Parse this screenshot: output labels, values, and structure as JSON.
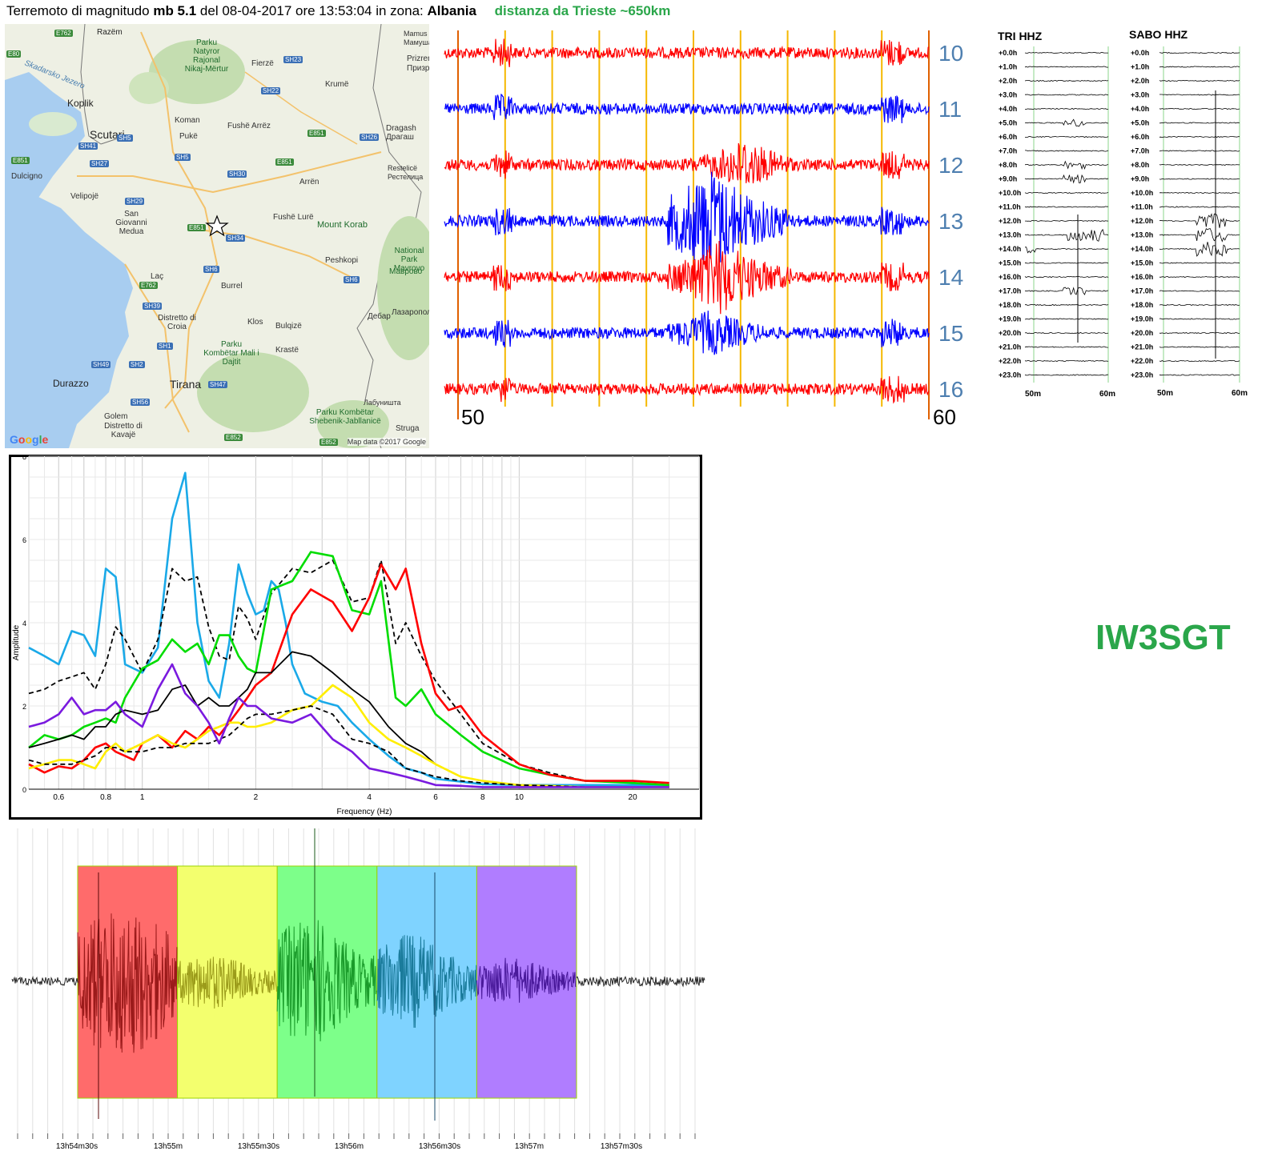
{
  "header": {
    "prefix": "Terremoto di magnitudo",
    "magnitude": "mb 5.1",
    "date_part": "del 08-04-2017 ore 13:53:04",
    "zone_part": "in zona:",
    "zone": "Albania",
    "distance": "distanza da Trieste ~650km"
  },
  "map": {
    "places": [
      "Razëm",
      "Koplik",
      "Scutari",
      "Koman",
      "Pukë",
      "Fushë Arrëz",
      "Fierzë",
      "Krumë",
      "Dragash",
      "Драгаш",
      "Restelicë",
      "Рестелица",
      "Dulcigno",
      "Velipojë",
      "San Giovanni Medua",
      "Arrën",
      "Fushë Lurë",
      "Mount Korab",
      "Peshkopi",
      "Laç",
      "Burrel",
      "Distretto di Croia",
      "Klos",
      "Bulqizë",
      "Krastë",
      "Дебар",
      "Лазаропол",
      "Durazzo",
      "Tirana",
      "Golem",
      "Distretto di Kavajë",
      "Лабуништа",
      "Struga",
      "Mamus",
      "Мамуша",
      "Prizren",
      "Призр"
    ],
    "parks": [
      "Parku Natyror Rajonal Nikaj-Mërtur",
      "National Park Mavrovo",
      "Маврово",
      "Parku Kombëtar Mali i Dajtit",
      "Parku Kombëtar Shebenik-Jabllanicë"
    ],
    "water": "Skadarsko Jezero",
    "roads": [
      "E762",
      "SH23",
      "SH22",
      "SH5",
      "SH41",
      "SH27",
      "SH5",
      "E851",
      "SH26",
      "SH30",
      "E851",
      "SH29",
      "E851",
      "SH34",
      "SH6",
      "E762",
      "SH39",
      "SH6",
      "SH1",
      "SH49",
      "SH2",
      "SH47",
      "SH56",
      "E852",
      "E852",
      "E80",
      "E851"
    ],
    "google": "Google",
    "attribution": "Map data ©2017 Google"
  },
  "helicorder": {
    "hour_labels": [
      "10",
      "11",
      "12",
      "13",
      "14",
      "15",
      "16"
    ],
    "trace_colors": [
      "#ff0000",
      "#0000ff",
      "#ff0000",
      "#0000ff",
      "#ff0000",
      "#0000ff",
      "#ff0000"
    ],
    "start_label": "50",
    "end_label": "60",
    "line_color": "#f5b800",
    "edge_color": "#e06000"
  },
  "stations": [
    {
      "name": "TRI HHZ"
    },
    {
      "name": "SABO HHZ"
    }
  ],
  "station_hours": [
    "+0.0h",
    "+1.0h",
    "+2.0h",
    "+3.0h",
    "+4.0h",
    "+5.0h",
    "+6.0h",
    "+7.0h",
    "+8.0h",
    "+9.0h",
    "+10.0h",
    "+11.0h",
    "+12.0h",
    "+13.0h",
    "+14.0h",
    "+15.0h",
    "+16.0h",
    "+17.0h",
    "+18.0h",
    "+19.0h",
    "+20.0h",
    "+21.0h",
    "+22.0h",
    "+23.0h"
  ],
  "station_axis": [
    "50m",
    "60m"
  ],
  "callsign": "IW3SGT",
  "chart_data": [
    {
      "type": "line",
      "scale_x": "log",
      "xlabel": "Frequency (Hz)",
      "ylabel": "Amplitude",
      "xlim": [
        0.5,
        30
      ],
      "ylim": [
        0,
        8
      ],
      "x_ticks": [
        0.6,
        0.8,
        1,
        2,
        4,
        6,
        8,
        10,
        20
      ],
      "x_tick_labels": [
        "0.6",
        "0.8",
        "1",
        "2",
        "4",
        "6",
        "8",
        "10",
        "20"
      ],
      "y_ticks": [
        0,
        2,
        4,
        6,
        8
      ],
      "y_tick_labels": [
        "0",
        "2",
        "4",
        "6",
        "8"
      ],
      "series": [
        {
          "color": "#1aa9e8",
          "style": "solid",
          "x": [
            0.5,
            0.55,
            0.6,
            0.65,
            0.7,
            0.75,
            0.8,
            0.85,
            0.9,
            1.0,
            1.1,
            1.2,
            1.3,
            1.4,
            1.5,
            1.6,
            1.7,
            1.8,
            1.9,
            2.0,
            2.1,
            2.2,
            2.3,
            2.4,
            2.5,
            2.7,
            3.0,
            3.3,
            3.6,
            4.0,
            4.5,
            5.0,
            5.5,
            6.0,
            7.0,
            8.0,
            10,
            12,
            15,
            20,
            25
          ],
          "y": [
            3.4,
            3.2,
            3.0,
            3.8,
            3.7,
            3.2,
            5.3,
            5.1,
            3.0,
            2.8,
            3.4,
            6.5,
            7.6,
            4.0,
            2.6,
            2.2,
            3.5,
            5.4,
            4.7,
            4.2,
            4.3,
            5.0,
            4.8,
            4.0,
            3.0,
            2.3,
            2.1,
            2.0,
            1.6,
            1.2,
            0.8,
            0.5,
            0.4,
            0.25,
            0.18,
            0.12,
            0.1,
            0.1,
            0.1,
            0.1,
            0.08
          ]
        },
        {
          "color": "#000000",
          "style": "dashed",
          "x": [
            0.5,
            0.55,
            0.6,
            0.65,
            0.7,
            0.75,
            0.8,
            0.85,
            0.9,
            1.0,
            1.1,
            1.2,
            1.3,
            1.4,
            1.5,
            1.6,
            1.7,
            1.8,
            1.9,
            2.0,
            2.2,
            2.5,
            2.8,
            3.2,
            3.6,
            4.0,
            4.3,
            4.7,
            5.0,
            5.5,
            6.0,
            7.0,
            8.0,
            10,
            12,
            15,
            20,
            25
          ],
          "y": [
            2.3,
            2.4,
            2.6,
            2.7,
            2.8,
            2.4,
            3.0,
            3.9,
            3.6,
            2.8,
            3.6,
            5.3,
            5.0,
            5.1,
            3.9,
            3.2,
            3.1,
            4.4,
            4.1,
            3.6,
            4.7,
            5.3,
            5.2,
            5.5,
            4.5,
            4.6,
            5.5,
            3.5,
            4.0,
            3.2,
            2.6,
            1.8,
            1.1,
            0.6,
            0.4,
            0.2,
            0.15,
            0.1
          ]
        },
        {
          "color": "#00dd00",
          "style": "solid",
          "x": [
            0.5,
            0.55,
            0.6,
            0.65,
            0.7,
            0.75,
            0.8,
            0.85,
            0.9,
            1.0,
            1.1,
            1.2,
            1.3,
            1.4,
            1.5,
            1.6,
            1.7,
            1.8,
            1.9,
            2.0,
            2.2,
            2.5,
            2.8,
            3.2,
            3.6,
            4.0,
            4.3,
            4.7,
            5.0,
            5.5,
            6.0,
            7.0,
            8.0,
            10,
            12,
            15,
            20,
            25
          ],
          "y": [
            1.0,
            1.3,
            1.2,
            1.3,
            1.5,
            1.6,
            1.7,
            1.6,
            2.2,
            2.9,
            3.1,
            3.6,
            3.3,
            3.5,
            3.0,
            3.7,
            3.7,
            3.2,
            2.9,
            2.8,
            4.8,
            5.0,
            5.7,
            5.6,
            4.3,
            4.2,
            5.0,
            2.2,
            2.0,
            2.4,
            1.8,
            1.3,
            0.9,
            0.5,
            0.35,
            0.2,
            0.15,
            0.1
          ]
        },
        {
          "color": "#ff0000",
          "style": "solid",
          "x": [
            0.5,
            0.55,
            0.6,
            0.65,
            0.7,
            0.75,
            0.8,
            0.85,
            0.9,
            0.95,
            1.0,
            1.1,
            1.2,
            1.3,
            1.4,
            1.5,
            1.6,
            1.7,
            1.8,
            1.9,
            2.0,
            2.2,
            2.5,
            2.8,
            3.2,
            3.6,
            4.0,
            4.3,
            4.7,
            5.0,
            5.5,
            6.0,
            6.5,
            7.0,
            8.0,
            10,
            12,
            15,
            20,
            25
          ],
          "y": [
            0.6,
            0.4,
            0.55,
            0.5,
            0.7,
            1.0,
            1.1,
            0.9,
            0.8,
            0.7,
            1.1,
            1.3,
            1.0,
            1.4,
            1.2,
            1.5,
            1.3,
            1.6,
            1.9,
            2.2,
            2.5,
            2.8,
            4.2,
            4.8,
            4.5,
            3.8,
            4.6,
            5.4,
            4.8,
            5.3,
            3.5,
            2.3,
            1.9,
            2.0,
            1.3,
            0.6,
            0.35,
            0.2,
            0.2,
            0.15
          ]
        },
        {
          "color": "#000000",
          "style": "solid",
          "x": [
            0.5,
            0.55,
            0.6,
            0.65,
            0.7,
            0.75,
            0.8,
            0.85,
            0.9,
            1.0,
            1.1,
            1.2,
            1.3,
            1.4,
            1.5,
            1.6,
            1.7,
            1.8,
            1.9,
            2.0,
            2.2,
            2.5,
            2.8,
            3.2,
            3.6,
            4.0,
            4.5,
            5.0,
            5.5,
            6.0,
            7.0,
            8.0,
            10,
            12,
            15,
            20,
            25
          ],
          "y": [
            1.0,
            1.1,
            1.2,
            1.3,
            1.2,
            1.5,
            1.5,
            1.8,
            1.9,
            1.8,
            1.9,
            2.4,
            2.5,
            2.0,
            2.2,
            2.0,
            2.0,
            2.2,
            2.4,
            2.8,
            2.8,
            3.3,
            3.2,
            2.8,
            2.4,
            2.1,
            1.5,
            1.1,
            0.9,
            0.6,
            0.3,
            0.2,
            0.1,
            0.08,
            0.05,
            0.05,
            0.05
          ]
        },
        {
          "color": "#ffee00",
          "style": "solid",
          "x": [
            0.5,
            0.55,
            0.6,
            0.65,
            0.7,
            0.75,
            0.8,
            0.85,
            0.9,
            1.0,
            1.1,
            1.2,
            1.3,
            1.4,
            1.5,
            1.6,
            1.7,
            1.8,
            1.9,
            2.0,
            2.2,
            2.5,
            2.8,
            3.2,
            3.6,
            4.0,
            4.5,
            5.0,
            5.5,
            6.0,
            7.0,
            8.0,
            10,
            12,
            15,
            20,
            25
          ],
          "y": [
            0.5,
            0.6,
            0.7,
            0.7,
            0.6,
            0.5,
            0.9,
            1.1,
            0.9,
            1.1,
            1.3,
            1.1,
            1.0,
            1.2,
            1.4,
            1.5,
            1.6,
            1.6,
            1.5,
            1.5,
            1.6,
            1.9,
            2.0,
            2.5,
            2.2,
            1.6,
            1.2,
            1.0,
            0.8,
            0.6,
            0.3,
            0.2,
            0.1,
            0.08,
            0.05,
            0.05,
            0.05
          ]
        },
        {
          "color": "#000000",
          "style": "dashed",
          "x": [
            0.5,
            0.55,
            0.6,
            0.65,
            0.7,
            0.75,
            0.8,
            0.85,
            0.9,
            1.0,
            1.1,
            1.2,
            1.3,
            1.4,
            1.5,
            1.6,
            1.7,
            1.8,
            1.9,
            2.0,
            2.2,
            2.5,
            2.8,
            3.2,
            3.6,
            4.0,
            4.5,
            5.0,
            5.5,
            6.0,
            7.0,
            8.0,
            10,
            12,
            15,
            20,
            25
          ],
          "y": [
            0.7,
            0.6,
            0.6,
            0.6,
            0.7,
            0.8,
            1.0,
            1.0,
            0.9,
            0.9,
            1.0,
            1.0,
            1.1,
            1.1,
            1.1,
            1.2,
            1.3,
            1.5,
            1.7,
            1.8,
            1.8,
            1.9,
            2.0,
            1.8,
            1.2,
            1.1,
            0.9,
            0.5,
            0.4,
            0.3,
            0.2,
            0.15,
            0.1,
            0.08,
            0.05,
            0.05,
            0.05
          ]
        },
        {
          "color": "#7a1adf",
          "style": "solid",
          "x": [
            0.5,
            0.55,
            0.6,
            0.65,
            0.7,
            0.75,
            0.8,
            0.85,
            0.9,
            1.0,
            1.1,
            1.2,
            1.3,
            1.4,
            1.5,
            1.6,
            1.7,
            1.8,
            1.9,
            2.0,
            2.2,
            2.5,
            2.8,
            3.2,
            3.6,
            4.0,
            4.5,
            5.0,
            5.5,
            6.0,
            7.0,
            8.0,
            10,
            12,
            15,
            20,
            25
          ],
          "y": [
            1.5,
            1.6,
            1.8,
            2.2,
            1.8,
            1.9,
            1.9,
            2.1,
            1.8,
            1.5,
            2.4,
            3.0,
            2.3,
            2.0,
            1.6,
            1.1,
            1.7,
            2.2,
            2.0,
            2.0,
            1.7,
            1.6,
            1.8,
            1.2,
            0.9,
            0.5,
            0.4,
            0.3,
            0.2,
            0.1,
            0.08,
            0.05,
            0.05,
            0.05,
            0.05,
            0.05,
            0.05
          ]
        }
      ]
    },
    {
      "type": "line",
      "title": "",
      "xlabel": "",
      "ylabel": "",
      "x_tick_labels": [
        "13h54m30s",
        "13h55m",
        "13h55m30s",
        "13h56m",
        "13h56m30s",
        "13h57m",
        "13h57m30s"
      ],
      "windows": [
        {
          "fill": "#ff6b6b",
          "trace": "#9b1a1a",
          "start": 0,
          "end": 1
        },
        {
          "fill": "#f3ff6e",
          "trace": "#9b9b1a",
          "start": 1,
          "end": 2
        },
        {
          "fill": "#7dff8a",
          "trace": "#1a9b2a",
          "start": 2,
          "end": 3
        },
        {
          "fill": "#7fd3ff",
          "trace": "#1a7b9b",
          "start": 3,
          "end": 4
        },
        {
          "fill": "#b07dff",
          "trace": "#4a1a9b",
          "start": 4,
          "end": 5
        }
      ]
    }
  ]
}
